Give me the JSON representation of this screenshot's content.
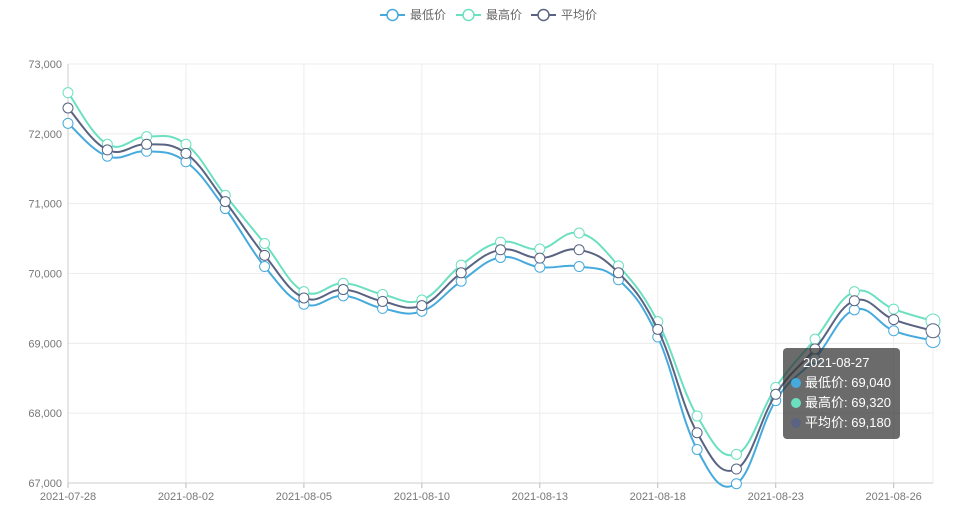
{
  "chart_data": {
    "type": "line",
    "x": [
      "2021-07-28",
      "2021-07-29",
      "2021-07-30",
      "2021-08-02",
      "2021-08-03",
      "2021-08-04",
      "2021-08-05",
      "2021-08-06",
      "2021-08-09",
      "2021-08-10",
      "2021-08-11",
      "2021-08-12",
      "2021-08-13",
      "2021-08-16",
      "2021-08-17",
      "2021-08-18",
      "2021-08-19",
      "2021-08-20",
      "2021-08-23",
      "2021-08-24",
      "2021-08-25",
      "2021-08-26",
      "2021-08-27"
    ],
    "x_tick_labels": [
      "2021-07-28",
      "2021-08-02",
      "2021-08-05",
      "2021-08-10",
      "2021-08-13",
      "2021-08-18",
      "2021-08-23",
      "2021-08-26"
    ],
    "y_tick_labels": [
      "67,000",
      "68,000",
      "69,000",
      "70,000",
      "71,000",
      "72,000",
      "73,000"
    ],
    "ylim": [
      67000,
      73000
    ],
    "grid": true,
    "smooth": true,
    "legend_position": "top-center",
    "series": [
      {
        "name": "最低价",
        "color": "#46aadc",
        "values": [
          72150,
          71680,
          71750,
          71600,
          70930,
          70100,
          69560,
          69680,
          69500,
          69460,
          69890,
          70230,
          70090,
          70100,
          69910,
          69090,
          67480,
          66990,
          68180,
          68780,
          69480,
          69180,
          69040
        ]
      },
      {
        "name": "最高价",
        "color": "#6be0c0",
        "values": [
          72590,
          71850,
          71960,
          71850,
          71120,
          70430,
          69740,
          69860,
          69700,
          69620,
          70120,
          70450,
          70350,
          70580,
          70110,
          69310,
          67960,
          67410,
          68370,
          69060,
          69740,
          69490,
          69320
        ]
      },
      {
        "name": "平均价",
        "color": "#5a6482",
        "values": [
          72370,
          71770,
          71850,
          71720,
          71030,
          70260,
          69650,
          69770,
          69600,
          69540,
          70010,
          70340,
          70220,
          70340,
          70010,
          69200,
          67720,
          67200,
          68270,
          68920,
          69610,
          69340,
          69180
        ]
      }
    ]
  },
  "tooltip": {
    "title": "2021-08-27",
    "rows": [
      {
        "label": "最低价: 69,040",
        "color": "#46aadc"
      },
      {
        "label": "最高价: 69,320",
        "color": "#6be0c0"
      },
      {
        "label": "平均价: 69,180",
        "color": "#5a6482"
      }
    ]
  }
}
